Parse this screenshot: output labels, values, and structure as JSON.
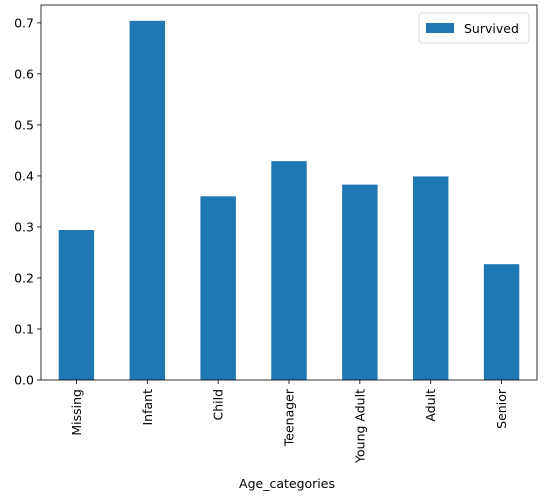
{
  "chart_data": {
    "type": "bar",
    "title": "",
    "xlabel": "Age_categories",
    "ylabel": "",
    "categories": [
      "Missing",
      "Infant",
      "Child",
      "Teenager",
      "Young Adult",
      "Adult",
      "Senior"
    ],
    "series": [
      {
        "name": "Survived",
        "color": "#1f77b4",
        "values": [
          0.294,
          0.704,
          0.36,
          0.429,
          0.383,
          0.399,
          0.227
        ]
      }
    ],
    "ylim": [
      0,
      0.735
    ],
    "yticks": [
      0.0,
      0.1,
      0.2,
      0.3,
      0.4,
      0.5,
      0.6,
      0.7
    ],
    "ytick_labels": [
      "0.0",
      "0.1",
      "0.2",
      "0.3",
      "0.4",
      "0.5",
      "0.6",
      "0.7"
    ],
    "grid": false,
    "legend_position": "top-right"
  }
}
